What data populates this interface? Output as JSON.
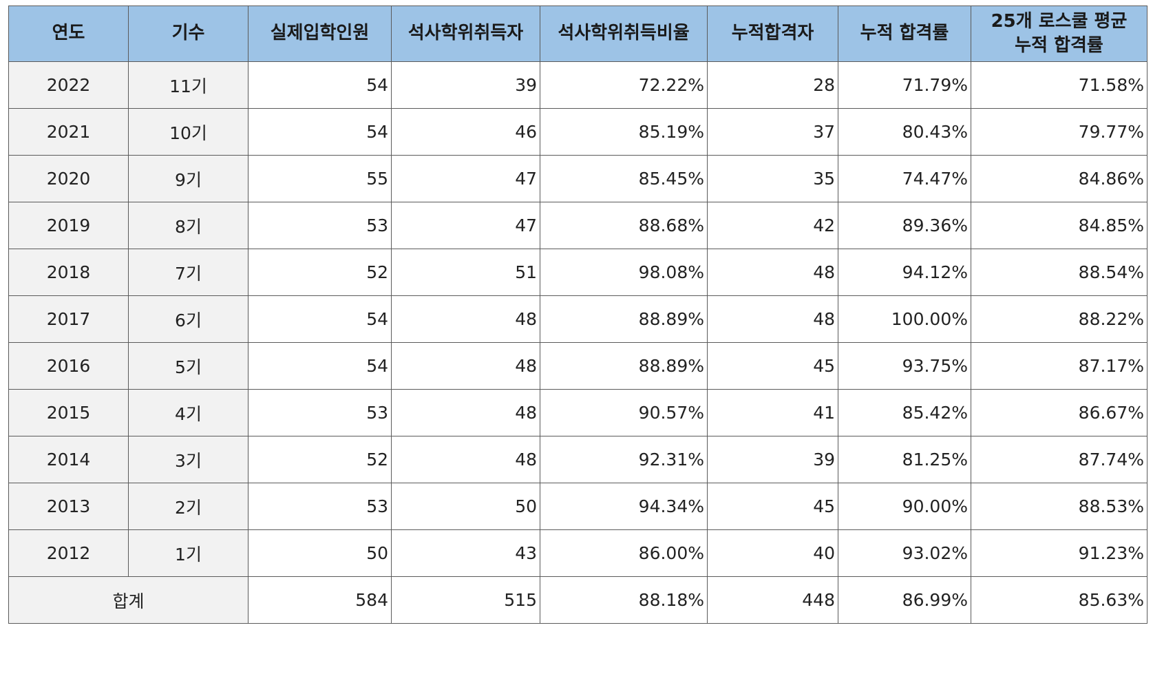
{
  "table": {
    "headers": [
      "연도",
      "기수",
      "실제입학인원",
      "석사학위취득자",
      "석사학위취득비율",
      "누적합격자",
      "누적 합격률",
      "25개 로스쿨 평균\n누적 합격률"
    ],
    "rows": [
      [
        "2022",
        "11기",
        "54",
        "39",
        "72.22%",
        "28",
        "71.79%",
        "71.58%"
      ],
      [
        "2021",
        "10기",
        "54",
        "46",
        "85.19%",
        "37",
        "80.43%",
        "79.77%"
      ],
      [
        "2020",
        "9기",
        "55",
        "47",
        "85.45%",
        "35",
        "74.47%",
        "84.86%"
      ],
      [
        "2019",
        "8기",
        "53",
        "47",
        "88.68%",
        "42",
        "89.36%",
        "84.85%"
      ],
      [
        "2018",
        "7기",
        "52",
        "51",
        "98.08%",
        "48",
        "94.12%",
        "88.54%"
      ],
      [
        "2017",
        "6기",
        "54",
        "48",
        "88.89%",
        "48",
        "100.00%",
        "88.22%"
      ],
      [
        "2016",
        "5기",
        "54",
        "48",
        "88.89%",
        "45",
        "93.75%",
        "87.17%"
      ],
      [
        "2015",
        "4기",
        "53",
        "48",
        "90.57%",
        "41",
        "85.42%",
        "86.67%"
      ],
      [
        "2014",
        "3기",
        "52",
        "48",
        "92.31%",
        "39",
        "81.25%",
        "87.74%"
      ],
      [
        "2013",
        "2기",
        "53",
        "50",
        "94.34%",
        "45",
        "90.00%",
        "88.53%"
      ],
      [
        "2012",
        "1기",
        "50",
        "43",
        "86.00%",
        "40",
        "93.02%",
        "91.23%"
      ]
    ],
    "total": {
      "label": "합계",
      "values": [
        "584",
        "515",
        "88.18%",
        "448",
        "86.99%",
        "85.63%"
      ]
    }
  },
  "colors": {
    "header_bg": "#9dc3e6",
    "label_cell_bg": "#f2f2f2",
    "border": "#5a5a5a"
  }
}
